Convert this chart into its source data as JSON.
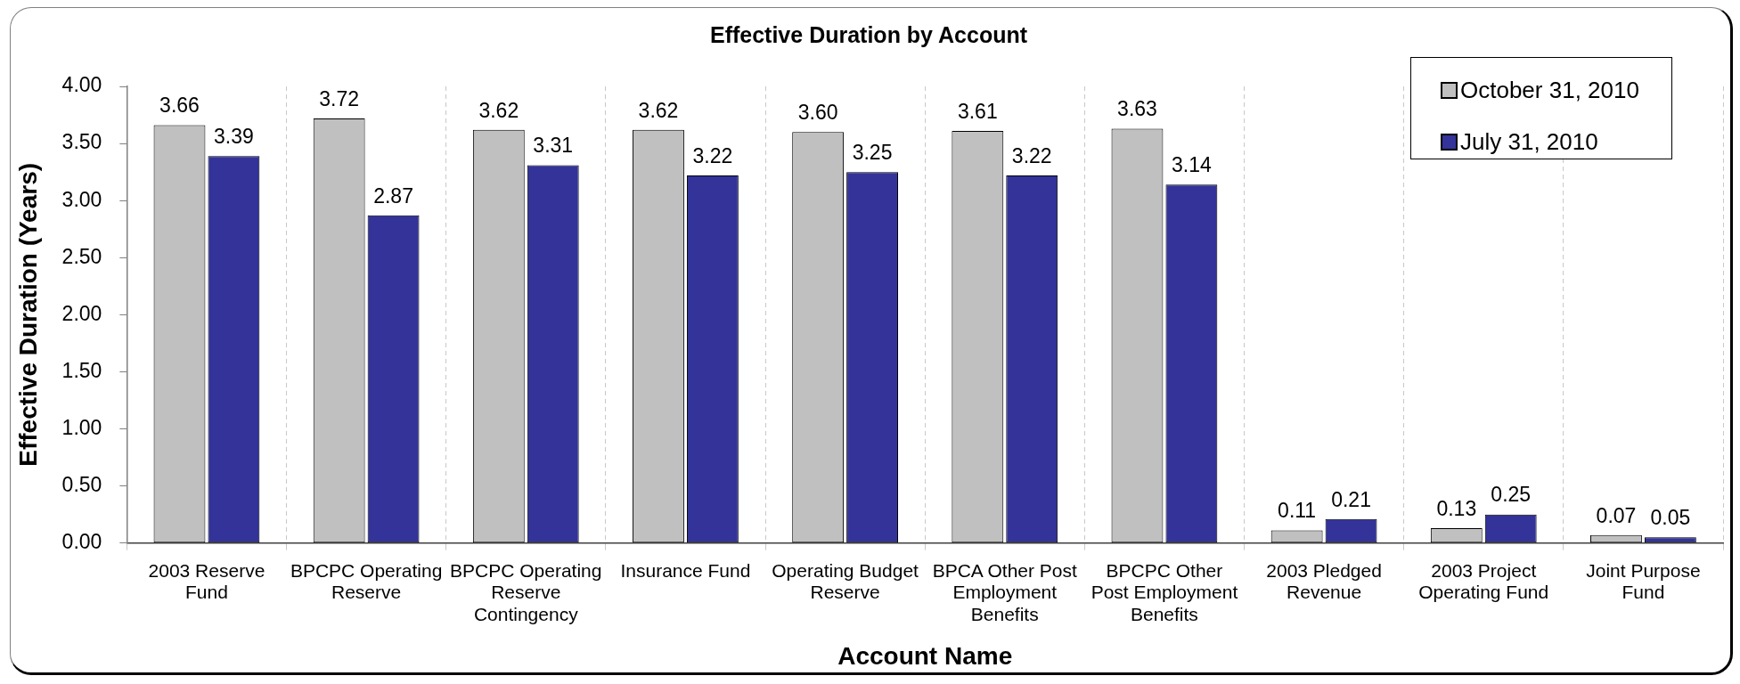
{
  "chart_data": {
    "type": "bar",
    "title": "Effective Duration by Account",
    "xlabel": "Account Name",
    "ylabel": "Effective Duration (Years)",
    "categories": [
      "2003 Reserve Fund",
      "BPCPC Operating Reserve",
      "BPCPC Operating Reserve Contingency",
      "Insurance Fund",
      "Operating Budget Reserve",
      "BPCA Other Post Employment Benefits",
      "BPCPC Other Post Employment Benefits",
      "2003 Pledged Revenue",
      "2003 Project Operating Fund",
      "Joint Purpose Fund"
    ],
    "series": [
      {
        "name": "October 31, 2010",
        "color": "#c0c0c0",
        "values": [
          3.66,
          3.72,
          3.62,
          3.62,
          3.6,
          3.61,
          3.63,
          0.11,
          0.13,
          0.07
        ],
        "value_labels": [
          "3.66",
          "3.72",
          "3.62",
          "3.62",
          "3.60",
          "3.61",
          "3.63",
          "0.11",
          "0.13",
          "0.07"
        ]
      },
      {
        "name": "July 31, 2010",
        "color": "#333399",
        "values": [
          3.39,
          2.87,
          3.31,
          3.22,
          3.25,
          3.22,
          3.14,
          0.21,
          0.25,
          0.05
        ],
        "value_labels": [
          "3.39",
          "2.87",
          "3.31",
          "3.22",
          "3.25",
          "3.22",
          "3.14",
          "0.21",
          "0.25",
          "0.05"
        ]
      }
    ],
    "ylim": [
      0,
      4
    ],
    "yticks": [
      {
        "value": 0,
        "label": "0.00"
      },
      {
        "value": 0.5,
        "label": "0.50"
      },
      {
        "value": 1,
        "label": "1.00"
      },
      {
        "value": 1.5,
        "label": "1.50"
      },
      {
        "value": 2,
        "label": "2.00"
      },
      {
        "value": 2.5,
        "label": "2.50"
      },
      {
        "value": 3,
        "label": "3.00"
      },
      {
        "value": 3.5,
        "label": "3.50"
      },
      {
        "value": 4,
        "label": "4.00"
      }
    ],
    "grid": "x",
    "legend": "top right"
  }
}
